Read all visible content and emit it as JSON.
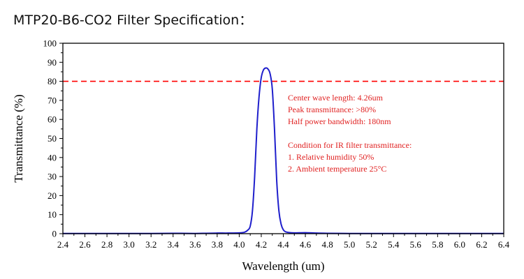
{
  "page": {
    "title": "MTP20-B6-CO2 Filter Specification："
  },
  "chart_data": {
    "type": "line",
    "xlabel": "Wavelength (um)",
    "ylabel": "Transmittance (%)",
    "xlim": [
      2.4,
      6.4
    ],
    "ylim": [
      0,
      100
    ],
    "x_ticks": [
      2.4,
      2.6,
      2.8,
      3.0,
      3.2,
      3.4,
      3.6,
      3.8,
      4.0,
      4.2,
      4.4,
      4.6,
      4.8,
      5.0,
      5.2,
      5.4,
      5.6,
      5.8,
      6.0,
      6.2,
      6.4
    ],
    "x_tick_labels": [
      "2.4",
      "2.6",
      "2.8",
      "3.0",
      "3.2",
      "3.4",
      "3.6",
      "3.8",
      "4.0",
      "4.2",
      "4.4",
      "4.6",
      "4.8",
      "5.0",
      "5.2",
      "5.4",
      "5.6",
      "5.8",
      "6.0",
      "6.2",
      "6.4"
    ],
    "y_ticks": [
      0,
      10,
      20,
      30,
      40,
      50,
      60,
      70,
      80,
      90,
      100
    ],
    "y_tick_labels": [
      "0",
      "10",
      "20",
      "30",
      "40",
      "50",
      "60",
      "70",
      "80",
      "90",
      "100"
    ],
    "grid": false,
    "series": [
      {
        "color": "#1f1fcc",
        "x": [
          2.4,
          2.6,
          2.8,
          3.0,
          3.2,
          3.4,
          3.6,
          3.7,
          3.8,
          3.9,
          4.0,
          4.05,
          4.08,
          4.1,
          4.12,
          4.14,
          4.16,
          4.18,
          4.2,
          4.22,
          4.24,
          4.26,
          4.28,
          4.3,
          4.32,
          4.34,
          4.36,
          4.38,
          4.4,
          4.42,
          4.45,
          4.5,
          4.6,
          4.7,
          4.8,
          5.0,
          5.2,
          5.4,
          5.6,
          5.8,
          6.0,
          6.2,
          6.4
        ],
        "y": [
          0.1,
          0.1,
          0.1,
          0.1,
          0.1,
          0.2,
          0.1,
          0.2,
          0.3,
          0.3,
          0.4,
          0.8,
          2.0,
          4.0,
          12.0,
          30.0,
          55.0,
          72.0,
          82.0,
          86.0,
          87.0,
          86.5,
          84.0,
          76.0,
          55.0,
          28.0,
          12.0,
          5.0,
          2.0,
          1.0,
          0.6,
          0.4,
          0.5,
          0.3,
          0.2,
          0.1,
          0.1,
          0.1,
          0.1,
          0.1,
          0.1,
          0.1,
          0.1
        ]
      }
    ],
    "reference_lines": [
      {
        "axis": "y",
        "value": 80,
        "color": "#ff0000",
        "style": "dashed"
      }
    ],
    "annotations": {
      "color": "#e02020",
      "lines": [
        "Center wave length:  4.26um",
        "Peak transmittance: >80%",
        "Half power bandwidth:  180nm",
        "",
        "Condition for IR filter transmittance:",
        "1. Relative humidity 50%",
        "2. Ambient temperature 25°C"
      ]
    }
  }
}
